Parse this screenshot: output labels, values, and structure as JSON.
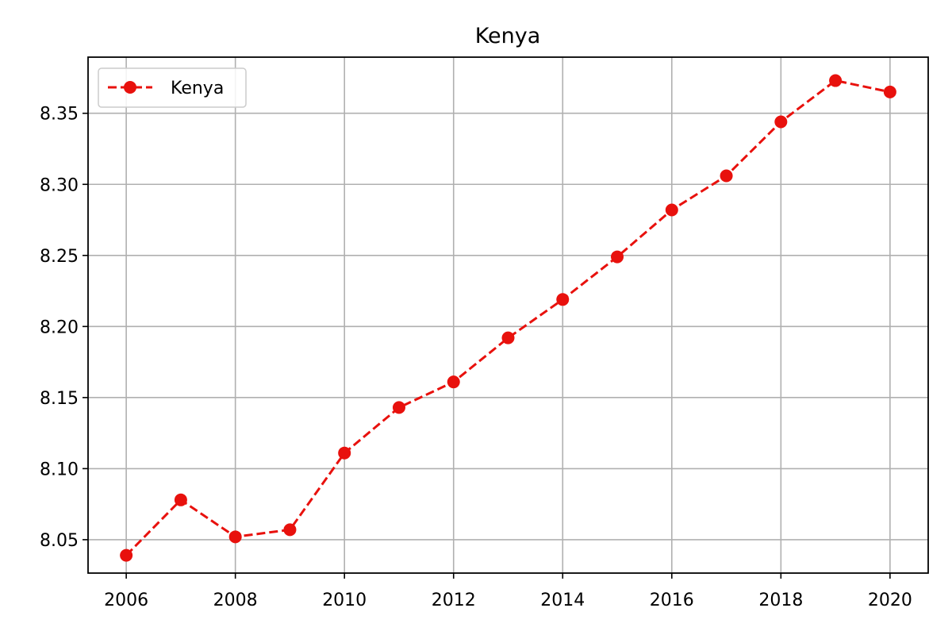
{
  "chart_data": {
    "type": "line",
    "title": "Kenya",
    "xlabel": "",
    "ylabel": "",
    "x": [
      2006,
      2007,
      2008,
      2009,
      2010,
      2011,
      2012,
      2013,
      2014,
      2015,
      2016,
      2017,
      2018,
      2019,
      2020
    ],
    "series": [
      {
        "name": "Kenya",
        "color": "#e8110d",
        "line_style": "dashed",
        "marker": "circle",
        "values": [
          8.039,
          8.078,
          8.052,
          8.057,
          8.111,
          8.143,
          8.161,
          8.192,
          8.219,
          8.249,
          8.282,
          8.306,
          8.344,
          8.373,
          8.365
        ]
      }
    ],
    "xlim": [
      2005.3,
      2020.7
    ],
    "ylim": [
      8.0265,
      8.3895
    ],
    "xticks": [
      "2006",
      "2008",
      "2010",
      "2012",
      "2014",
      "2016",
      "2018",
      "2020"
    ],
    "yticks": [
      "8.05",
      "8.10",
      "8.15",
      "8.20",
      "8.25",
      "8.30",
      "8.35"
    ],
    "grid": true,
    "legend_position": "top-left"
  }
}
